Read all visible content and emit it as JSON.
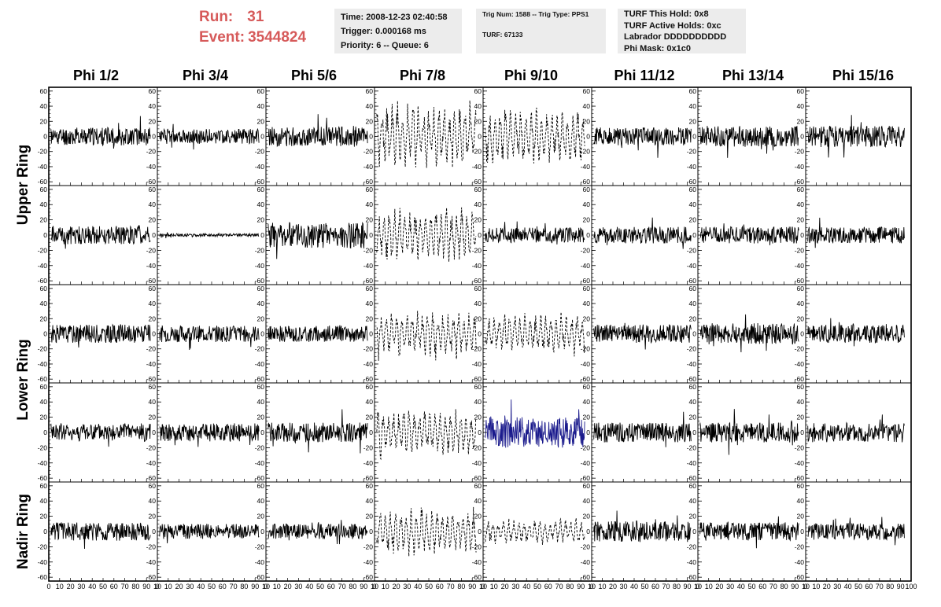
{
  "header": {
    "run_label": "Run:",
    "run_value": "31",
    "event_label": "Event:",
    "event_value": "3544824",
    "run_event_color": "#d65a5a"
  },
  "info_time": {
    "time": "Time: 2008-12-23 02:40:58",
    "trigger": "Trigger: 0.000168 ms",
    "priority": "Priority: 6 -- Queue: 6"
  },
  "info_trig": {
    "trig": "Trig Num: 1588 -- Trig Type: PPS1",
    "turf": "TURF: 67133"
  },
  "info_turf": {
    "hold": "TURF This Hold: 0x8",
    "active": "TURF Active Holds: 0xc",
    "labrador": "Labrador DDDDDDDDDD",
    "phimask": "Phi Mask: 0x1c0"
  },
  "phi_headers": [
    "Phi 1/2",
    "Phi 3/4",
    "Phi 5/6",
    "Phi 7/8",
    "Phi 9/10",
    "Phi 11/12",
    "Phi 13/14",
    "Phi 15/16"
  ],
  "ring_labels": [
    "Upper Ring",
    "Lower Ring",
    "Nadir Ring"
  ],
  "y_ticks": [
    "60",
    "40",
    "20",
    "0",
    "-20",
    "-40",
    "-60"
  ],
  "x_ticks": [
    "0",
    "10",
    "20",
    "30",
    "40",
    "50",
    "60",
    "70",
    "80",
    "90",
    "100"
  ],
  "x_tick_label_strip": [
    "0",
    "10",
    "20",
    "30",
    "40",
    "50",
    "60",
    "70",
    "80",
    "90",
    "10",
    "0",
    "10",
    "20",
    "30",
    "40",
    "50",
    "60",
    "70",
    "80",
    "90",
    "10",
    "0",
    "10",
    "20",
    "30",
    "40",
    "50",
    "60",
    "70",
    "80",
    "90",
    "10",
    "0",
    "10",
    "20",
    "30",
    "40",
    "50",
    "60",
    "70",
    "80",
    "90",
    "10",
    "0",
    "10",
    "20",
    "30",
    "40",
    "50",
    "60",
    "70",
    "80",
    "90",
    "10",
    "0",
    "10",
    "20",
    "30",
    "40",
    "50",
    "60",
    "70",
    "80",
    "90",
    "10",
    "0",
    "10",
    "20",
    "30",
    "40",
    "50",
    "60",
    "70",
    "80",
    "90",
    "10",
    "0",
    "10",
    "20",
    "30",
    "40",
    "50",
    "60",
    "70",
    "80",
    "90",
    "100"
  ],
  "colors": {
    "trace": "#000000",
    "highlight_trace": "#1a1a8c",
    "axis": "#000000",
    "panel_bg": "#ffffff",
    "info_bg": "#ececec"
  },
  "chart_data": {
    "type": "line",
    "x_range": [
      0,
      100
    ],
    "y_range": [
      -65,
      65
    ],
    "y_ticks": [
      60,
      40,
      20,
      0,
      -20,
      -40,
      -60
    ],
    "x_ticks": [
      0,
      10,
      20,
      30,
      40,
      50,
      60,
      70,
      80,
      90,
      100
    ],
    "rows": 5,
    "columns": 8,
    "grid": false,
    "panels": [
      {
        "row": 0,
        "col": 0,
        "style": "solid",
        "amplitude": 12,
        "seed": 11
      },
      {
        "row": 0,
        "col": 1,
        "style": "solid",
        "amplitude": 10,
        "seed": 12
      },
      {
        "row": 0,
        "col": 2,
        "style": "solid",
        "amplitude": 13,
        "seed": 13
      },
      {
        "row": 0,
        "col": 3,
        "style": "dashed",
        "amplitude": 28,
        "seed": 14
      },
      {
        "row": 0,
        "col": 4,
        "style": "dashed",
        "amplitude": 24,
        "seed": 15
      },
      {
        "row": 0,
        "col": 5,
        "style": "solid",
        "amplitude": 12,
        "seed": 16
      },
      {
        "row": 0,
        "col": 6,
        "style": "solid",
        "amplitude": 14,
        "seed": 17
      },
      {
        "row": 0,
        "col": 7,
        "style": "solid",
        "amplitude": 14,
        "seed": 18
      },
      {
        "row": 1,
        "col": 0,
        "style": "solid",
        "amplitude": 12,
        "seed": 21
      },
      {
        "row": 1,
        "col": 1,
        "style": "solid",
        "amplitude": 2,
        "seed": 22
      },
      {
        "row": 1,
        "col": 2,
        "style": "solid",
        "amplitude": 17,
        "seed": 23
      },
      {
        "row": 1,
        "col": 3,
        "style": "dashed",
        "amplitude": 22,
        "seed": 24
      },
      {
        "row": 1,
        "col": 4,
        "style": "solid",
        "amplitude": 10,
        "seed": 25
      },
      {
        "row": 1,
        "col": 5,
        "style": "solid",
        "amplitude": 11,
        "seed": 26
      },
      {
        "row": 1,
        "col": 6,
        "style": "solid",
        "amplitude": 11,
        "seed": 27
      },
      {
        "row": 1,
        "col": 7,
        "style": "solid",
        "amplitude": 11,
        "seed": 28
      },
      {
        "row": 2,
        "col": 0,
        "style": "solid",
        "amplitude": 12,
        "seed": 31
      },
      {
        "row": 2,
        "col": 1,
        "style": "solid",
        "amplitude": 11,
        "seed": 32
      },
      {
        "row": 2,
        "col": 2,
        "style": "solid",
        "amplitude": 11,
        "seed": 33
      },
      {
        "row": 2,
        "col": 3,
        "style": "dashed",
        "amplitude": 20,
        "seed": 34
      },
      {
        "row": 2,
        "col": 4,
        "style": "dashed",
        "amplitude": 17,
        "seed": 35
      },
      {
        "row": 2,
        "col": 5,
        "style": "solid",
        "amplitude": 12,
        "seed": 36
      },
      {
        "row": 2,
        "col": 6,
        "style": "solid",
        "amplitude": 14,
        "seed": 37
      },
      {
        "row": 2,
        "col": 7,
        "style": "solid",
        "amplitude": 12,
        "seed": 38
      },
      {
        "row": 3,
        "col": 0,
        "style": "solid",
        "amplitude": 12,
        "seed": 41
      },
      {
        "row": 3,
        "col": 1,
        "style": "solid",
        "amplitude": 12,
        "seed": 42
      },
      {
        "row": 3,
        "col": 2,
        "style": "solid",
        "amplitude": 13,
        "seed": 43
      },
      {
        "row": 3,
        "col": 3,
        "style": "dashed",
        "amplitude": 20,
        "seed": 44
      },
      {
        "row": 3,
        "col": 4,
        "style": "solid-blue",
        "amplitude": 20,
        "seed": 45
      },
      {
        "row": 3,
        "col": 5,
        "style": "solid",
        "amplitude": 13,
        "seed": 46
      },
      {
        "row": 3,
        "col": 6,
        "style": "solid",
        "amplitude": 13,
        "seed": 47
      },
      {
        "row": 3,
        "col": 7,
        "style": "solid",
        "amplitude": 13,
        "seed": 48
      },
      {
        "row": 4,
        "col": 0,
        "style": "solid",
        "amplitude": 12,
        "seed": 51
      },
      {
        "row": 4,
        "col": 1,
        "style": "solid",
        "amplitude": 10,
        "seed": 52
      },
      {
        "row": 4,
        "col": 2,
        "style": "solid",
        "amplitude": 10,
        "seed": 53
      },
      {
        "row": 4,
        "col": 3,
        "style": "dashed",
        "amplitude": 19,
        "seed": 54
      },
      {
        "row": 4,
        "col": 4,
        "style": "dashed",
        "amplitude": 10,
        "seed": 55
      },
      {
        "row": 4,
        "col": 5,
        "style": "solid",
        "amplitude": 14,
        "seed": 56
      },
      {
        "row": 4,
        "col": 6,
        "style": "solid",
        "amplitude": 12,
        "seed": 57
      },
      {
        "row": 4,
        "col": 7,
        "style": "solid",
        "amplitude": 11,
        "seed": 58
      }
    ]
  }
}
